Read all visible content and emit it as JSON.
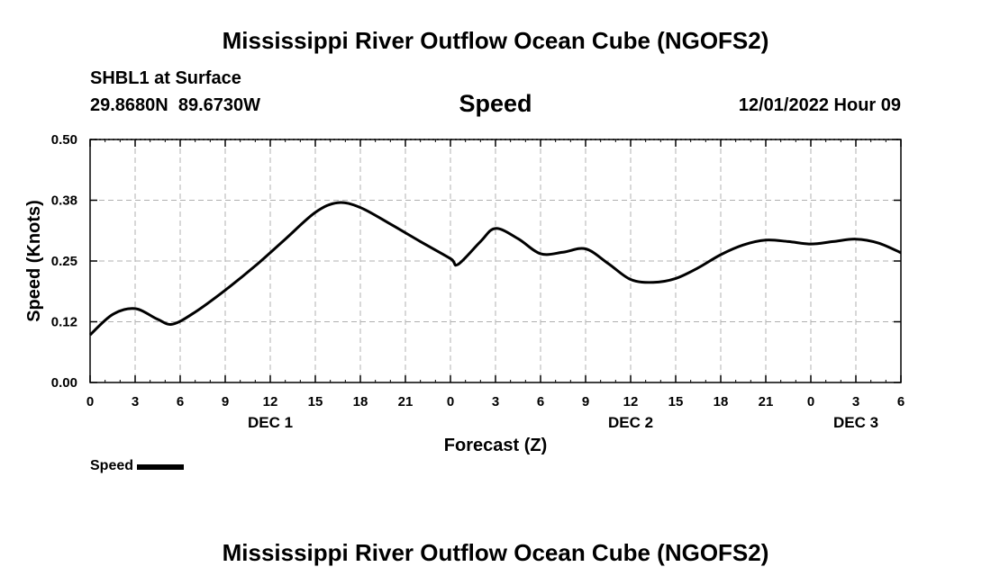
{
  "header": {
    "title_top": "Mississippi River Outflow Ocean Cube (NGOFS2)",
    "title_bottom": "Mississippi River Outflow Ocean Cube (NGOFS2)",
    "station": "SHBL1 at Surface",
    "coords": "29.8680N  89.6730W",
    "subtitle": "Speed",
    "datetime": "12/01/2022 Hour 09"
  },
  "chart_data": {
    "type": "line",
    "title": "Speed",
    "xlabel": "Forecast (Z)",
    "ylabel": "Speed (Knots)",
    "xlim": [
      0,
      54
    ],
    "ylim": [
      0,
      0.5
    ],
    "x_ticks": [
      {
        "h": 0,
        "label": "0"
      },
      {
        "h": 3,
        "label": "3"
      },
      {
        "h": 6,
        "label": "6"
      },
      {
        "h": 9,
        "label": "9"
      },
      {
        "h": 12,
        "label": "12"
      },
      {
        "h": 15,
        "label": "15"
      },
      {
        "h": 18,
        "label": "18"
      },
      {
        "h": 21,
        "label": "21"
      },
      {
        "h": 24,
        "label": "0"
      },
      {
        "h": 27,
        "label": "3"
      },
      {
        "h": 30,
        "label": "6"
      },
      {
        "h": 33,
        "label": "9"
      },
      {
        "h": 36,
        "label": "12"
      },
      {
        "h": 39,
        "label": "15"
      },
      {
        "h": 42,
        "label": "18"
      },
      {
        "h": 45,
        "label": "21"
      },
      {
        "h": 48,
        "label": "0"
      },
      {
        "h": 51,
        "label": "3"
      },
      {
        "h": 54,
        "label": "6"
      }
    ],
    "day_labels": [
      {
        "h": 12,
        "label": "DEC 1"
      },
      {
        "h": 36,
        "label": "DEC 2"
      },
      {
        "h": 51,
        "label": "DEC 3"
      }
    ],
    "y_ticks": [
      {
        "v": 0.0,
        "label": "0.00"
      },
      {
        "v": 0.125,
        "label": "0.12"
      },
      {
        "v": 0.25,
        "label": "0.25"
      },
      {
        "v": 0.375,
        "label": "0.38"
      },
      {
        "v": 0.5,
        "label": "0.50"
      }
    ],
    "series": [
      {
        "name": "Speed",
        "color": "#000000",
        "x": [
          0,
          1.5,
          3,
          4.5,
          5.5,
          7,
          9,
          11,
          13,
          15,
          16.5,
          18,
          20,
          22,
          24,
          24.5,
          26,
          27,
          28.5,
          30,
          31.5,
          33,
          34.5,
          36,
          37.5,
          39,
          40.5,
          42,
          43.5,
          45,
          46.5,
          48,
          49.5,
          51,
          52.5,
          54
        ],
        "y": [
          0.098,
          0.14,
          0.152,
          0.13,
          0.12,
          0.145,
          0.19,
          0.24,
          0.295,
          0.35,
          0.37,
          0.36,
          0.326,
          0.29,
          0.255,
          0.243,
          0.29,
          0.317,
          0.296,
          0.265,
          0.268,
          0.275,
          0.245,
          0.212,
          0.206,
          0.214,
          0.236,
          0.263,
          0.283,
          0.293,
          0.29,
          0.285,
          0.29,
          0.295,
          0.287,
          0.267
        ]
      }
    ],
    "legend": {
      "label": "Speed",
      "position": "bottom-left"
    },
    "grid": true
  }
}
